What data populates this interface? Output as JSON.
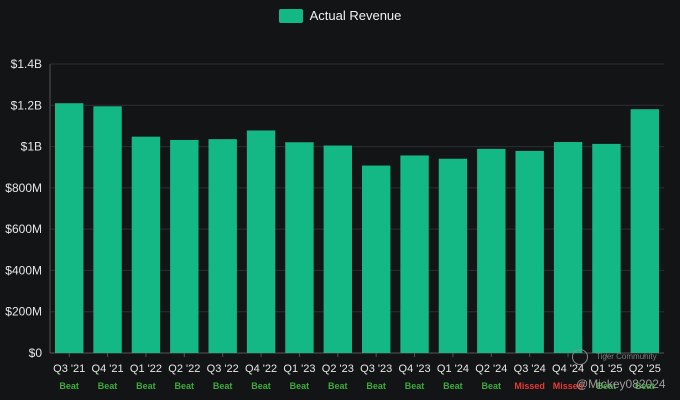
{
  "legend": {
    "label": "Actual Revenue"
  },
  "colors": {
    "bar": "#14b884",
    "beat": "#3cab3c",
    "missed": "#e53935",
    "background": "#131416",
    "grid": "#2c2e33",
    "text": "#e6e6e6"
  },
  "watermark": {
    "community": "Tiger Community",
    "handle": "@Mickey082024"
  },
  "chart_data": {
    "type": "bar",
    "categories": [
      "Q3 '21",
      "Q4 '21",
      "Q1 '22",
      "Q2 '22",
      "Q3 '22",
      "Q4 '22",
      "Q1 '23",
      "Q2 '23",
      "Q3 '23",
      "Q4 '23",
      "Q1 '24",
      "Q2 '24",
      "Q3 '24",
      "Q4 '24",
      "Q1 '25",
      "Q2 '25"
    ],
    "series": [
      {
        "name": "Actual Revenue",
        "values": [
          1.21,
          1.195,
          1.048,
          1.032,
          1.036,
          1.078,
          1.021,
          1.005,
          0.908,
          0.957,
          0.941,
          0.989,
          0.979,
          1.022,
          1.013,
          1.181
        ]
      }
    ],
    "result_labels": [
      "Beat",
      "Beat",
      "Beat",
      "Beat",
      "Beat",
      "Beat",
      "Beat",
      "Beat",
      "Beat",
      "Beat",
      "Beat",
      "Beat",
      "Missed",
      "Missed",
      "Beat",
      "Beat"
    ],
    "y_unit": "billions USD",
    "ylim": [
      0,
      1.4
    ],
    "yticks": [
      0,
      0.2,
      0.4,
      0.6,
      0.8,
      1.0,
      1.2,
      1.4
    ],
    "ytick_labels": [
      "$0",
      "$200M",
      "$400M",
      "$600M",
      "$800M",
      "$1B",
      "$1.2B",
      "$1.4B"
    ],
    "legend_position": "top-center",
    "grid": true
  }
}
